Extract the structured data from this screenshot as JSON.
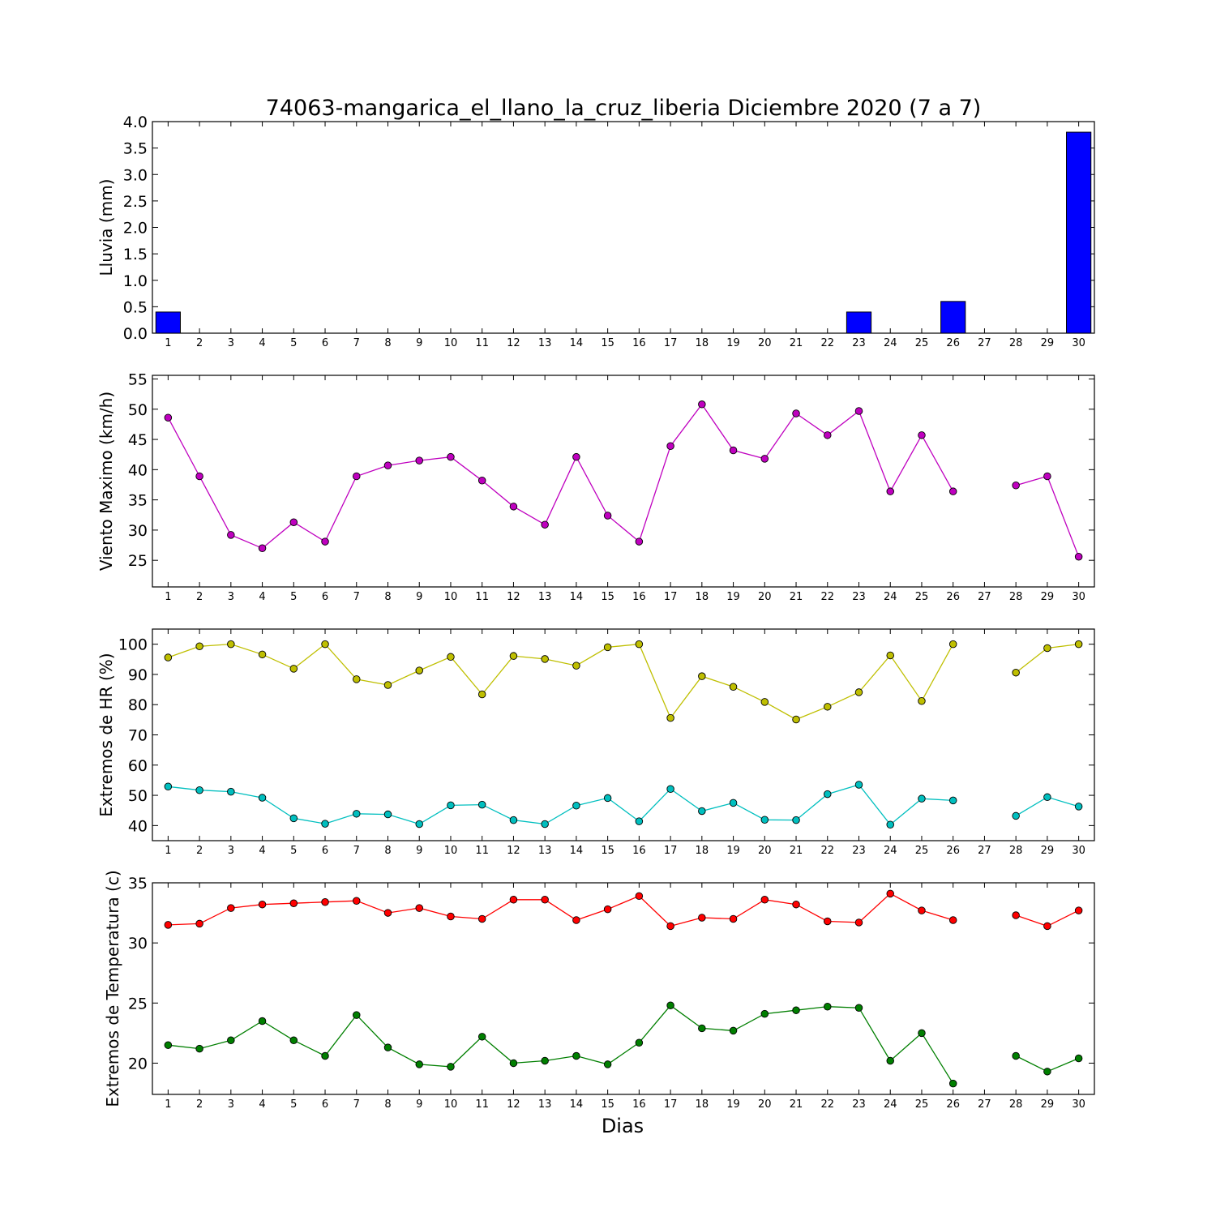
{
  "chart_data": [
    {
      "type": "bar",
      "title": "74063-mangarica_el_llano_la_cruz_liberia Diciembre 2020  (7 a 7)",
      "ylabel": "Lluvia (mm)",
      "xlabel": "",
      "categories": [
        "1",
        "2",
        "3",
        "4",
        "5",
        "6",
        "7",
        "8",
        "9",
        "10",
        "11",
        "12",
        "13",
        "14",
        "15",
        "16",
        "17",
        "18",
        "19",
        "20",
        "21",
        "22",
        "23",
        "24",
        "25",
        "26",
        "27",
        "28",
        "29",
        "30"
      ],
      "series": [
        {
          "color": "#0000ff",
          "values": [
            0.4,
            0,
            0,
            0,
            0,
            0,
            0,
            0,
            0,
            0,
            0,
            0,
            0,
            0,
            0,
            0,
            0,
            0,
            0,
            0,
            0,
            0,
            0.4,
            0,
            0,
            0.6,
            null,
            0,
            0,
            3.8
          ]
        }
      ],
      "ylim": [
        0,
        4.0
      ],
      "yticks": [
        "0.0",
        "0.5",
        "1.0",
        "1.5",
        "2.0",
        "2.5",
        "3.0",
        "3.5",
        "4.0"
      ],
      "grid": false
    },
    {
      "type": "line",
      "title": "",
      "ylabel": "Viento Maximo (km/h)",
      "xlabel": "",
      "categories": [
        "1",
        "2",
        "3",
        "4",
        "5",
        "6",
        "7",
        "8",
        "9",
        "10",
        "11",
        "12",
        "13",
        "14",
        "15",
        "16",
        "17",
        "18",
        "19",
        "20",
        "21",
        "22",
        "23",
        "24",
        "25",
        "26",
        "27",
        "28",
        "29",
        "30"
      ],
      "series": [
        {
          "color": "#bf00bf",
          "values": [
            48.6,
            38.9,
            29.2,
            27.0,
            31.3,
            28.1,
            38.9,
            40.7,
            41.5,
            42.1,
            38.2,
            33.9,
            30.9,
            42.1,
            32.4,
            28.1,
            43.9,
            50.8,
            43.2,
            41.8,
            49.3,
            45.7,
            49.7,
            36.4,
            45.7,
            36.4,
            null,
            37.4,
            38.9,
            25.6
          ]
        }
      ],
      "ylim": [
        20.6,
        55.6
      ],
      "yticks": [
        "25",
        "30",
        "35",
        "40",
        "45",
        "50",
        "55"
      ],
      "grid": false
    },
    {
      "type": "line",
      "title": "",
      "ylabel": "Extremos de HR (%)",
      "xlabel": "",
      "categories": [
        "1",
        "2",
        "3",
        "4",
        "5",
        "6",
        "7",
        "8",
        "9",
        "10",
        "11",
        "12",
        "13",
        "14",
        "15",
        "16",
        "17",
        "18",
        "19",
        "20",
        "21",
        "22",
        "23",
        "24",
        "25",
        "26",
        "27",
        "28",
        "29",
        "30"
      ],
      "series": [
        {
          "color": "#bfbf00",
          "values": [
            95.6,
            99.3,
            100,
            96.6,
            91.9,
            100,
            88.4,
            86.5,
            91.3,
            95.8,
            83.4,
            96.1,
            95.1,
            92.9,
            99.0,
            100,
            75.6,
            89.4,
            85.9,
            80.9,
            75.1,
            79.3,
            84.1,
            96.3,
            81.2,
            100,
            null,
            90.6,
            98.7,
            100
          ]
        },
        {
          "color": "#00bfbf",
          "values": [
            52.9,
            51.7,
            51.2,
            49.2,
            42.4,
            40.6,
            43.9,
            43.7,
            40.5,
            46.7,
            46.9,
            41.8,
            40.5,
            46.6,
            49.1,
            41.4,
            52.1,
            44.8,
            47.5,
            41.9,
            41.8,
            50.4,
            53.5,
            40.3,
            48.9,
            48.3,
            null,
            43.2,
            49.4,
            46.3
          ]
        }
      ],
      "ylim": [
        35.0,
        105.0
      ],
      "yticks": [
        "40",
        "50",
        "60",
        "70",
        "80",
        "90",
        "100"
      ],
      "grid": false
    },
    {
      "type": "line",
      "title": "",
      "ylabel": "Extremos de Temperatura (c)",
      "xlabel": "Dias",
      "categories": [
        "1",
        "2",
        "3",
        "4",
        "5",
        "6",
        "7",
        "8",
        "9",
        "10",
        "11",
        "12",
        "13",
        "14",
        "15",
        "16",
        "17",
        "18",
        "19",
        "20",
        "21",
        "22",
        "23",
        "24",
        "25",
        "26",
        "27",
        "28",
        "29",
        "30"
      ],
      "series": [
        {
          "color": "#ff0000",
          "values": [
            31.5,
            31.6,
            32.9,
            33.2,
            33.3,
            33.4,
            33.5,
            32.5,
            32.9,
            32.2,
            32.0,
            33.6,
            33.6,
            31.9,
            32.8,
            33.9,
            31.4,
            32.1,
            32.0,
            33.6,
            33.2,
            31.8,
            31.7,
            34.1,
            32.7,
            31.9,
            null,
            32.3,
            31.4,
            32.7
          ]
        },
        {
          "color": "#007f00",
          "values": [
            21.5,
            21.2,
            21.9,
            23.5,
            21.9,
            20.6,
            24.0,
            21.3,
            19.9,
            19.7,
            22.2,
            20.0,
            20.2,
            20.6,
            19.9,
            21.7,
            24.8,
            22.9,
            22.7,
            24.1,
            24.4,
            24.7,
            24.6,
            20.2,
            22.5,
            18.3,
            null,
            20.6,
            19.3,
            20.4
          ]
        }
      ],
      "ylim": [
        17.4,
        35.0
      ],
      "yticks": [
        "20",
        "25",
        "30",
        "35"
      ],
      "grid": false
    }
  ]
}
